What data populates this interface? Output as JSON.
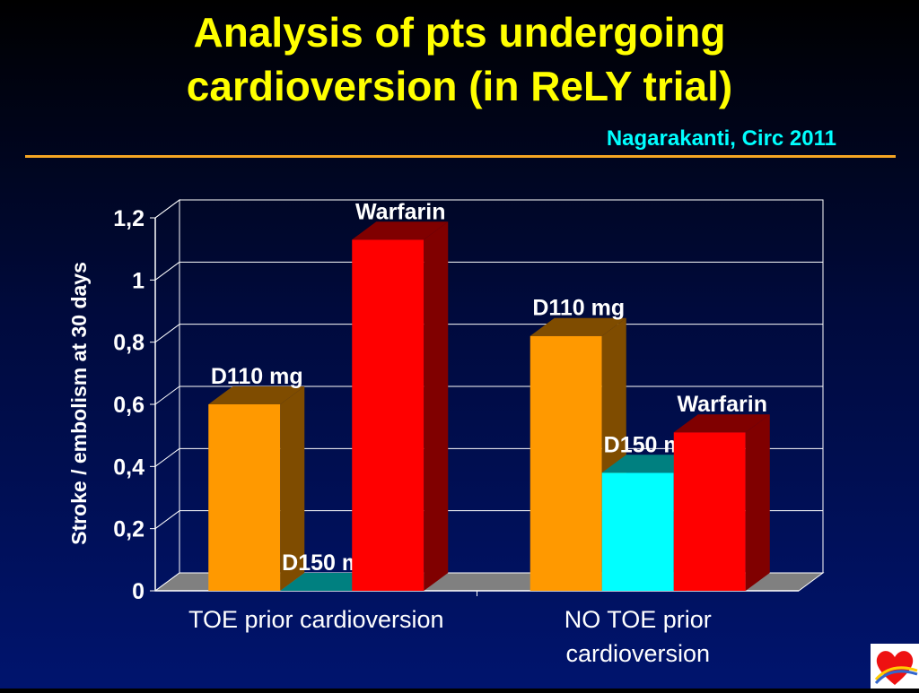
{
  "slide": {
    "title_line1": "Analysis of pts undergoing",
    "title_line2": "cardioversion (in ReLY trial)",
    "citation": "Nagarakanti, Circ 2011"
  },
  "logo": {
    "icon": "heart-logo-icon"
  },
  "chart_data": {
    "type": "bar",
    "categories": [
      "TOE prior cardioversion",
      "NO TOE prior cardioversion"
    ],
    "category_lines": [
      [
        "TOE prior cardioversion"
      ],
      [
        "NO TOE prior",
        "cardioversion"
      ]
    ],
    "ylabel": "Stroke / embolism at 30 days",
    "ylim": [
      0,
      1.2
    ],
    "yticks": [
      "0",
      "0,2",
      "0,4",
      "0,6",
      "0,8",
      "1",
      "1,2"
    ],
    "grid": true,
    "bar_labels": [
      [
        "D110 mg",
        "D150 mg",
        "Warfarin"
      ],
      [
        "D110 mg",
        "D150 mg",
        "Warfarin"
      ]
    ],
    "series": [
      {
        "name": "D110 mg",
        "values": [
          0.6,
          0.82
        ],
        "color": "#ff9900",
        "side_color": "#7f4c00"
      },
      {
        "name": "D150 mg",
        "values": [
          0.0,
          0.38
        ],
        "color": "#00ffff",
        "side_color": "#008080"
      },
      {
        "name": "Warfarin",
        "values": [
          1.13,
          0.51
        ],
        "color": "#ff0000",
        "side_color": "#800000"
      }
    ]
  }
}
